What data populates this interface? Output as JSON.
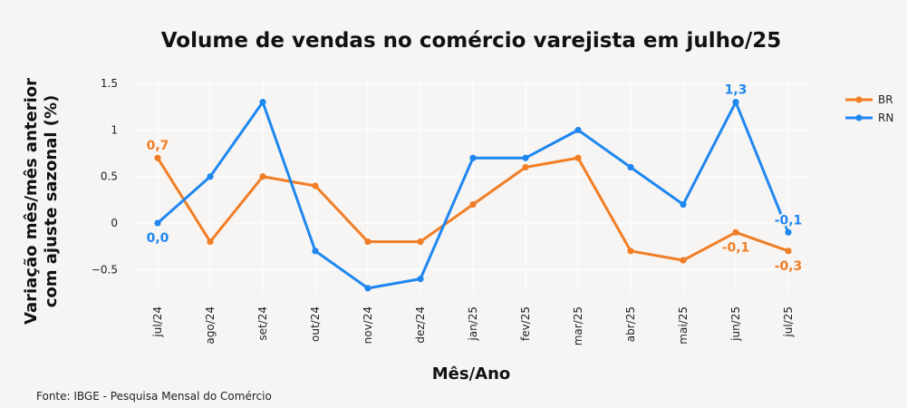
{
  "chart_data": {
    "type": "line",
    "title": "Volume de vendas no comércio varejista em julho/25",
    "xlabel": "Mês/Ano",
    "ylabel_lines": [
      "Variação mês/mês anterior",
      "com ajuste sazonal (%)"
    ],
    "categories": [
      "jul/24",
      "ago/24",
      "set/24",
      "out/24",
      "nov/24",
      "dez/24",
      "jan/25",
      "fev/25",
      "mar/25",
      "abr/25",
      "mai/25",
      "jun/25",
      "jul/25"
    ],
    "ylim": [
      -0.75,
      1.55
    ],
    "yticks": [
      -0.5,
      0,
      0.5,
      1,
      1.5
    ],
    "ytick_labels": [
      "−0.5",
      "0",
      "0.5",
      "1",
      "1.5"
    ],
    "grid": true,
    "legend_position": "top-right",
    "series": [
      {
        "name": "BR",
        "color": "#f07e26",
        "values": [
          0.7,
          -0.2,
          0.5,
          0.4,
          -0.2,
          -0.2,
          0.2,
          0.6,
          0.7,
          -0.3,
          -0.4,
          -0.1,
          -0.3
        ]
      },
      {
        "name": "RN",
        "color": "#1f87f0",
        "values": [
          0.0,
          0.5,
          1.3,
          -0.3,
          -0.7,
          -0.6,
          0.7,
          0.7,
          1.0,
          0.6,
          0.2,
          1.3,
          -0.1
        ]
      }
    ],
    "annotations": [
      {
        "series": "BR",
        "index": 0,
        "text": "0,7",
        "position": "above"
      },
      {
        "series": "RN",
        "index": 0,
        "text": "0,0",
        "position": "below"
      },
      {
        "series": "RN",
        "index": 11,
        "text": "1,3",
        "position": "above"
      },
      {
        "series": "BR",
        "index": 11,
        "text": "-0,1",
        "position": "below"
      },
      {
        "series": "RN",
        "index": 12,
        "text": "-0,1",
        "position": "above"
      },
      {
        "series": "BR",
        "index": 12,
        "text": "-0,3",
        "position": "below"
      }
    ]
  },
  "source": "Fonte: IBGE - Pesquisa Mensal do Comércio"
}
